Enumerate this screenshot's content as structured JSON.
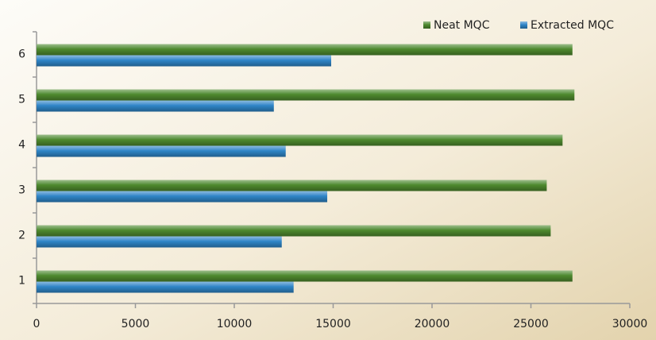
{
  "chart_data": {
    "type": "hbar",
    "categories": [
      "1",
      "2",
      "3",
      "4",
      "5",
      "6"
    ],
    "series": [
      {
        "name": "Neat MQC",
        "color": "#4e8a2e",
        "values": [
          27100,
          26000,
          25800,
          26600,
          27200,
          27100
        ]
      },
      {
        "name": "Extracted MQC",
        "color": "#2f86c8",
        "values": [
          13000,
          12400,
          14700,
          12600,
          12000,
          14900
        ]
      }
    ],
    "xlim": [
      0,
      30000
    ],
    "xticks": [
      0,
      5000,
      10000,
      15000,
      20000,
      25000,
      30000
    ],
    "legend": "top-right",
    "grid": false
  }
}
